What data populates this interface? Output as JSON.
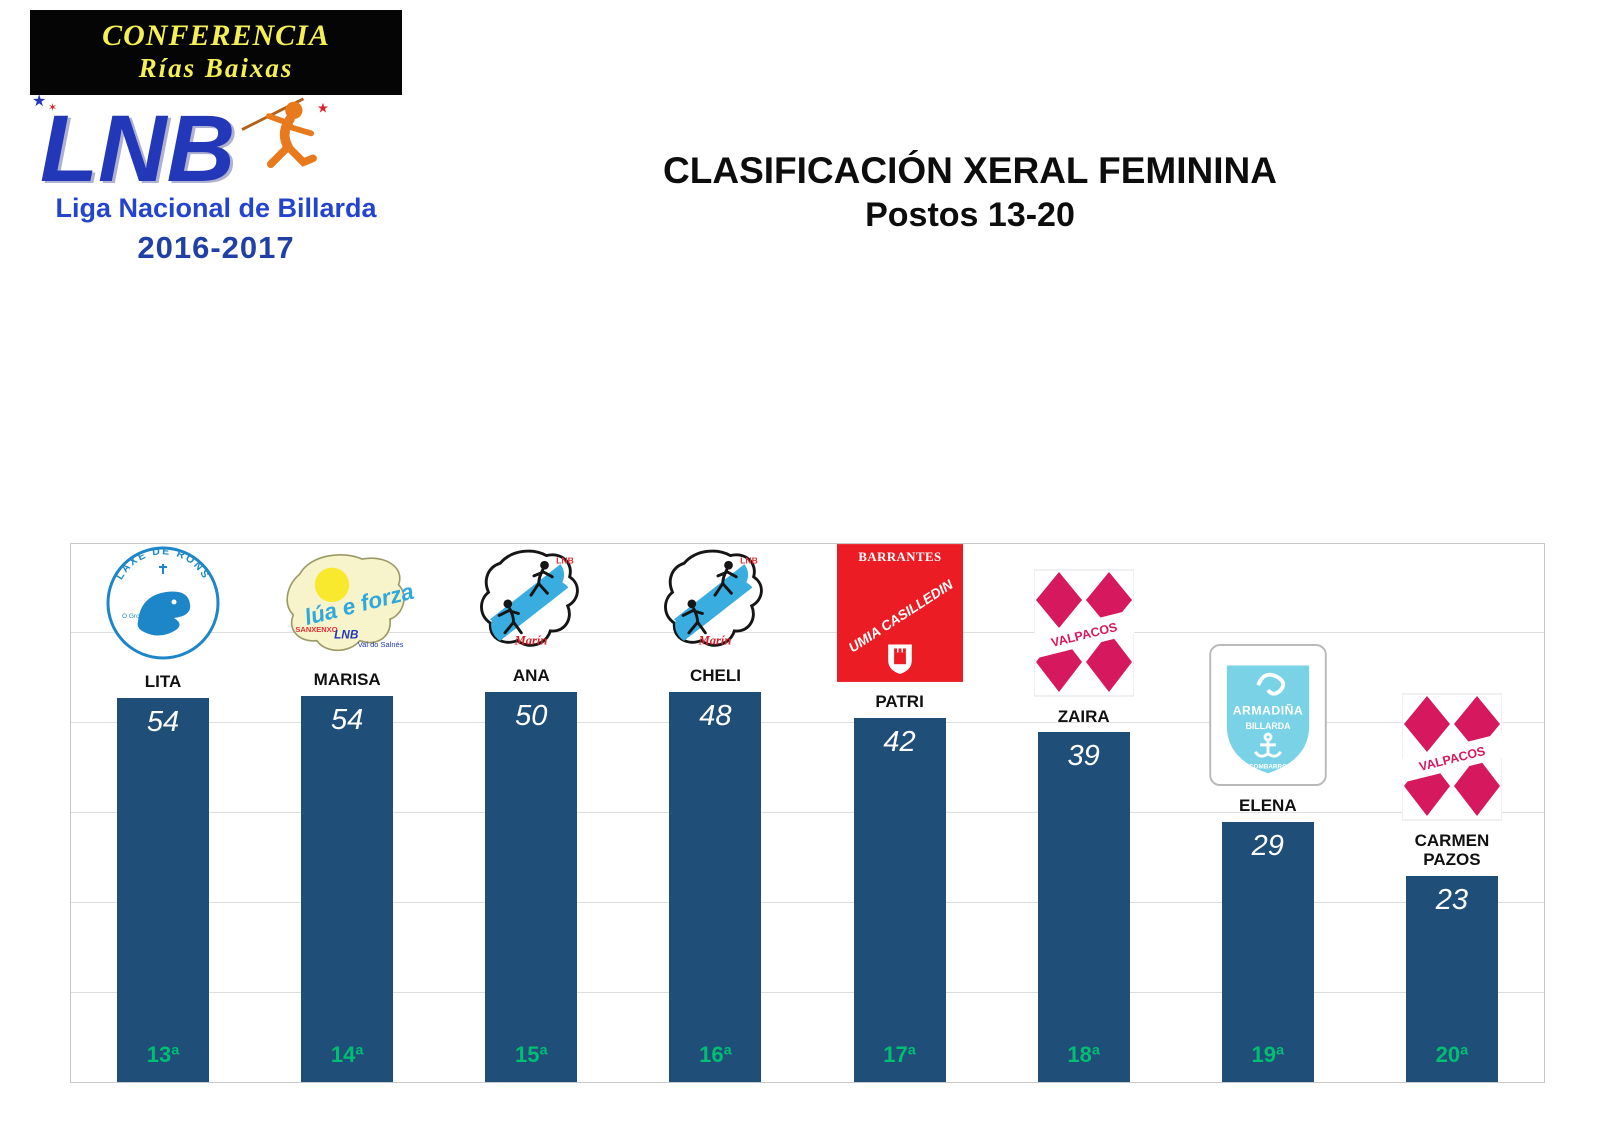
{
  "header": {
    "conference_line1": "CONFERENCIA",
    "conference_line2": "Rías Baixas",
    "lnb_acronym": "LNB",
    "league_name": "Liga Nacional de Billarda",
    "season": "2016-2017"
  },
  "title": {
    "line1": "CLASIFICACIÓN XERAL FEMININA",
    "line2": "Postos 13-20"
  },
  "chart_data": {
    "type": "bar",
    "title": "CLASIFICACIÓN XERAL FEMININA — Postos 13-20",
    "categories": [
      "LITA",
      "MARISA",
      "ANA",
      "CHELI",
      "PATRI",
      "ZAIRA",
      "ELENA",
      "CARMEN PAZOS"
    ],
    "values": [
      54,
      54,
      50,
      48,
      42,
      39,
      29,
      23
    ],
    "positions": [
      "13ª",
      "14ª",
      "15ª",
      "16ª",
      "17ª",
      "18ª",
      "19ª",
      "20ª"
    ],
    "xlabel": "",
    "ylabel": "",
    "ylim": [
      0,
      60
    ],
    "grid": true,
    "grid_step": 10,
    "legend": "none",
    "bar_color": "#1F4E79",
    "value_label_color": "#FFFFFF",
    "position_label_color": "#00BE72"
  },
  "logos": {
    "laxe_de_rons": {
      "arc_text": "LAXE DE RONS",
      "side_text": "O Grove"
    },
    "lua_e_forza": {
      "script_text": "lúa e forza",
      "town": "SANXENXO",
      "lnb": "LNB",
      "region": "Val do Salnés"
    },
    "marin": {
      "lnb": "LNB",
      "town": "Marín"
    },
    "barrantes": {
      "top": "BARRANTES",
      "diagonal": "UMIA CASILLEDIN"
    },
    "valpacos": {
      "name": "VALPACOS"
    },
    "armadina": {
      "top": "ARMADIÑA",
      "middle": "BILLARDA",
      "bottom": "COMBARRO"
    }
  }
}
